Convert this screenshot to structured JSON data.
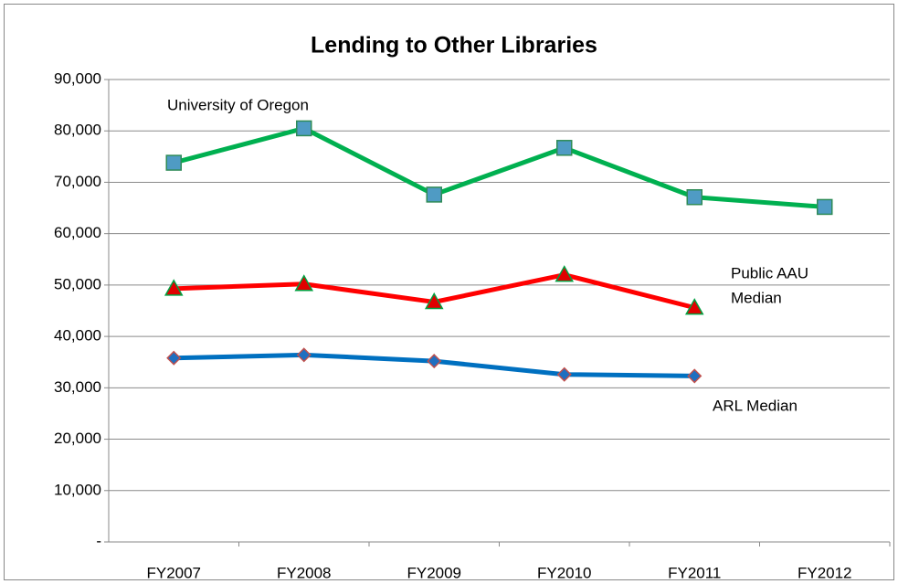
{
  "chart_data": {
    "type": "line",
    "title": "Lending to Other Libraries",
    "categories": [
      "FY2007",
      "FY2008",
      "FY2009",
      "FY2010",
      "FY2011",
      "FY2012"
    ],
    "series": [
      {
        "name": "University of Oregon",
        "color": "#00b050",
        "marker": "square",
        "marker_color": "#4f9bc4",
        "marker_edge": "#2e8b57",
        "values": [
          73800,
          80500,
          67600,
          76700,
          67100,
          65200
        ]
      },
      {
        "name": "Public AAU Median",
        "color": "#ff0000",
        "marker": "triangle",
        "marker_color": "#e00000",
        "marker_edge": "#00a040",
        "values": [
          49300,
          50200,
          46700,
          52000,
          45600,
          null
        ]
      },
      {
        "name": "ARL Median",
        "color": "#0070c0",
        "marker": "diamond",
        "marker_color": "#1f6fc0",
        "marker_edge": "#c0504d",
        "values": [
          35800,
          36400,
          35200,
          32600,
          32300,
          null
        ]
      }
    ],
    "annotations": [
      "University of Oregon",
      "Public AAU",
      "Median",
      "ARL Median"
    ],
    "ylim": [
      0,
      90000
    ],
    "yticks": [
      {
        "value": 0,
        "label": "-"
      },
      {
        "value": 10000,
        "label": "10,000"
      },
      {
        "value": 20000,
        "label": "20,000"
      },
      {
        "value": 30000,
        "label": "30,000"
      },
      {
        "value": 40000,
        "label": "40,000"
      },
      {
        "value": 50000,
        "label": "50,000"
      },
      {
        "value": 60000,
        "label": "60,000"
      },
      {
        "value": 70000,
        "label": "70,000"
      },
      {
        "value": 80000,
        "label": "80,000"
      },
      {
        "value": 90000,
        "label": "90,000"
      }
    ],
    "grid": true
  }
}
